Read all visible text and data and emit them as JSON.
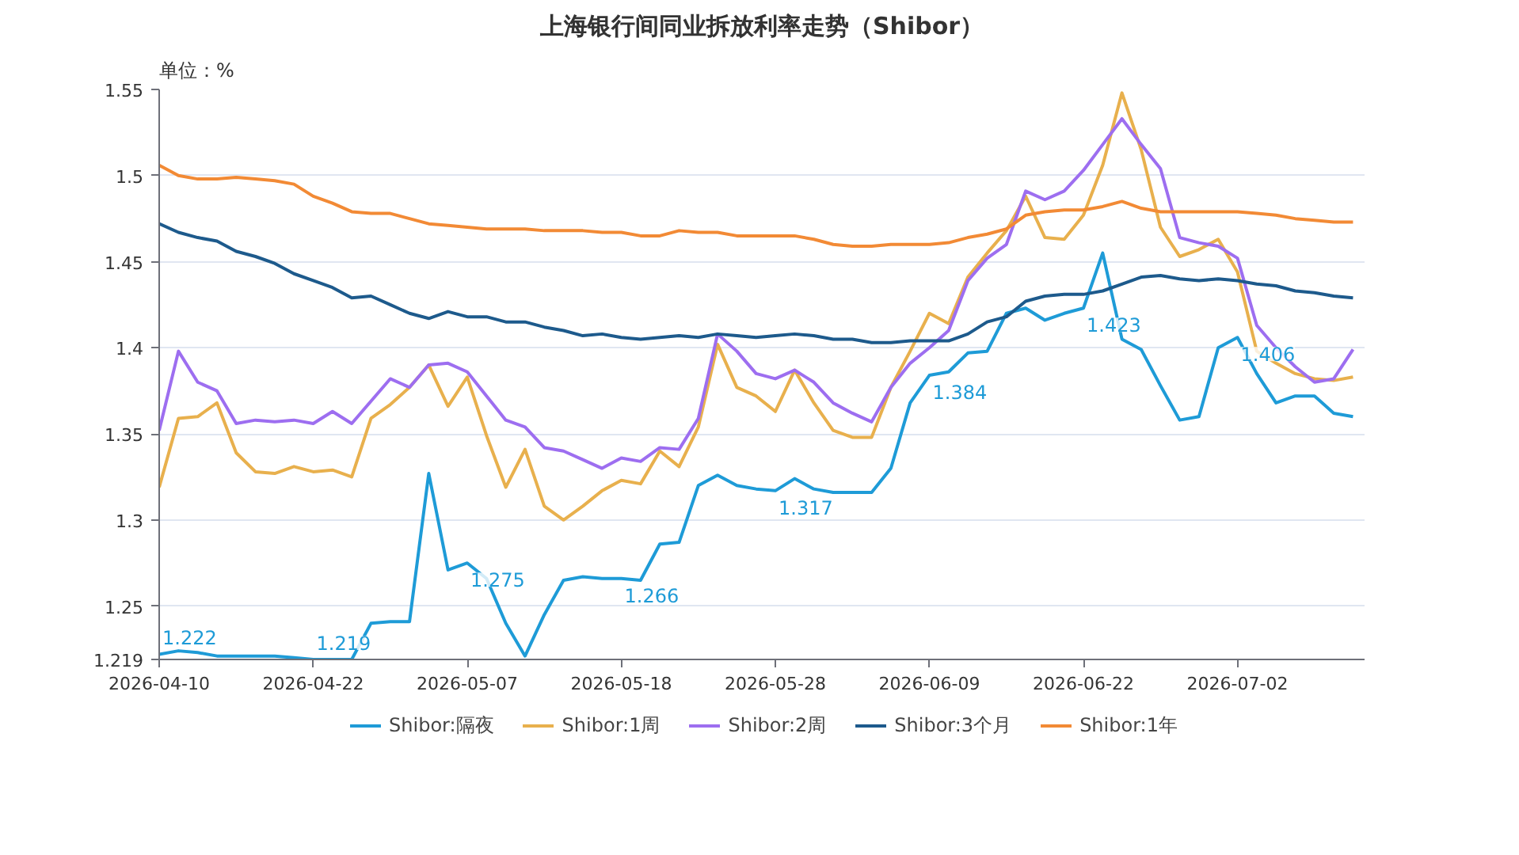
{
  "chart_data": {
    "type": "line",
    "title": "上海银行间同业拆放利率走势（Shibor）",
    "ylabel": "单位：%",
    "categories": [
      "2026-04-10",
      null,
      null,
      null,
      null,
      null,
      null,
      null,
      "2026-04-22",
      null,
      null,
      null,
      null,
      null,
      null,
      null,
      "2026-05-07",
      null,
      null,
      null,
      null,
      null,
      null,
      null,
      "2026-05-18",
      null,
      null,
      null,
      null,
      null,
      null,
      null,
      "2026-05-28",
      null,
      null,
      null,
      null,
      null,
      null,
      null,
      "2026-06-09",
      null,
      null,
      null,
      null,
      null,
      null,
      null,
      "2026-06-22",
      null,
      null,
      null,
      null,
      null,
      null,
      null,
      "2026-07-02",
      null,
      null,
      null,
      null,
      null,
      null
    ],
    "ylim": [
      1.219,
      1.55
    ],
    "yticks": [
      1.219,
      1.25,
      1.3,
      1.35,
      1.4,
      1.45,
      1.5,
      1.55
    ],
    "grid": "y",
    "legend": "bottom",
    "line_style": "solid",
    "series": [
      {
        "name": "Shibor:隔夜",
        "color": "#1e9bd7",
        "values": [
          1.222,
          1.224,
          1.223,
          1.221,
          1.221,
          1.221,
          1.221,
          1.22,
          1.219,
          1.219,
          1.219,
          1.24,
          1.241,
          1.241,
          1.327,
          1.271,
          1.275,
          1.266,
          1.24,
          1.221,
          1.245,
          1.265,
          1.267,
          1.266,
          1.266,
          1.265,
          1.286,
          1.287,
          1.32,
          1.326,
          1.32,
          1.318,
          1.317,
          1.324,
          1.318,
          1.316,
          1.316,
          1.316,
          1.33,
          1.368,
          1.384,
          1.386,
          1.397,
          1.398,
          1.42,
          1.423,
          1.416,
          1.42,
          1.423,
          1.455,
          1.405,
          1.399,
          1.378,
          1.358,
          1.36,
          1.4,
          1.406,
          1.385,
          1.368,
          1.372,
          1.372,
          1.362,
          1.36
        ],
        "value_labels": [
          "1.222",
          null,
          null,
          null,
          null,
          null,
          null,
          null,
          "1.219",
          null,
          null,
          null,
          null,
          null,
          null,
          null,
          "1.275",
          null,
          null,
          null,
          null,
          null,
          null,
          null,
          "1.266",
          null,
          null,
          null,
          null,
          null,
          null,
          null,
          "1.317",
          null,
          null,
          null,
          null,
          null,
          null,
          null,
          "1.384",
          null,
          null,
          null,
          null,
          null,
          null,
          null,
          "1.423",
          null,
          null,
          null,
          null,
          null,
          null,
          null,
          "1.406",
          null,
          null,
          null,
          null,
          null,
          null
        ]
      },
      {
        "name": "Shibor:1周",
        "color": "#e8b04d",
        "values": [
          1.319,
          1.359,
          1.36,
          1.368,
          1.339,
          1.328,
          1.327,
          1.331,
          1.328,
          1.329,
          1.325,
          1.359,
          1.367,
          1.377,
          1.39,
          1.366,
          1.383,
          1.349,
          1.319,
          1.341,
          1.308,
          1.3,
          1.308,
          1.317,
          1.323,
          1.321,
          1.34,
          1.331,
          1.354,
          1.402,
          1.377,
          1.372,
          1.363,
          1.387,
          1.368,
          1.352,
          1.348,
          1.348,
          1.377,
          1.398,
          1.42,
          1.414,
          1.441,
          1.455,
          1.468,
          1.488,
          1.464,
          1.463,
          1.477,
          1.506,
          1.548,
          1.515,
          1.47,
          1.453,
          1.457,
          1.463,
          1.444,
          1.398,
          1.391,
          1.385,
          1.382,
          1.381,
          1.383
        ]
      },
      {
        "name": "Shibor:2周",
        "color": "#9d6ef0",
        "values": [
          1.352,
          1.398,
          1.38,
          1.375,
          1.356,
          1.358,
          1.357,
          1.358,
          1.356,
          1.363,
          1.356,
          1.369,
          1.382,
          1.377,
          1.39,
          1.391,
          1.386,
          1.372,
          1.358,
          1.354,
          1.342,
          1.34,
          1.335,
          1.33,
          1.336,
          1.334,
          1.342,
          1.341,
          1.359,
          1.408,
          1.398,
          1.385,
          1.382,
          1.387,
          1.38,
          1.368,
          1.362,
          1.357,
          1.377,
          1.391,
          1.4,
          1.41,
          1.439,
          1.452,
          1.46,
          1.491,
          1.486,
          1.491,
          1.503,
          1.518,
          1.533,
          1.518,
          1.504,
          1.464,
          1.461,
          1.459,
          1.452,
          1.413,
          1.4,
          1.389,
          1.38,
          1.382,
          1.399
        ]
      },
      {
        "name": "Shibor:3个月",
        "color": "#1d5a8c",
        "values": [
          1.472,
          1.467,
          1.464,
          1.462,
          1.456,
          1.453,
          1.449,
          1.443,
          1.439,
          1.435,
          1.429,
          1.43,
          1.425,
          1.42,
          1.417,
          1.421,
          1.418,
          1.418,
          1.415,
          1.415,
          1.412,
          1.41,
          1.407,
          1.408,
          1.406,
          1.405,
          1.406,
          1.407,
          1.406,
          1.408,
          1.407,
          1.406,
          1.407,
          1.408,
          1.407,
          1.405,
          1.405,
          1.403,
          1.403,
          1.404,
          1.404,
          1.404,
          1.408,
          1.415,
          1.418,
          1.427,
          1.43,
          1.431,
          1.431,
          1.433,
          1.437,
          1.441,
          1.442,
          1.44,
          1.439,
          1.44,
          1.439,
          1.437,
          1.436,
          1.433,
          1.432,
          1.43,
          1.429
        ]
      },
      {
        "name": "Shibor:1年",
        "color": "#f28a35",
        "values": [
          1.506,
          1.5,
          1.498,
          1.498,
          1.499,
          1.498,
          1.497,
          1.495,
          1.488,
          1.484,
          1.479,
          1.478,
          1.478,
          1.475,
          1.472,
          1.471,
          1.47,
          1.469,
          1.469,
          1.469,
          1.468,
          1.468,
          1.468,
          1.467,
          1.467,
          1.465,
          1.465,
          1.468,
          1.467,
          1.467,
          1.465,
          1.465,
          1.465,
          1.465,
          1.463,
          1.46,
          1.459,
          1.459,
          1.46,
          1.46,
          1.46,
          1.461,
          1.464,
          1.466,
          1.469,
          1.477,
          1.479,
          1.48,
          1.48,
          1.482,
          1.485,
          1.481,
          1.479,
          1.479,
          1.479,
          1.479,
          1.479,
          1.478,
          1.477,
          1.475,
          1.474,
          1.473,
          1.473
        ]
      }
    ]
  }
}
